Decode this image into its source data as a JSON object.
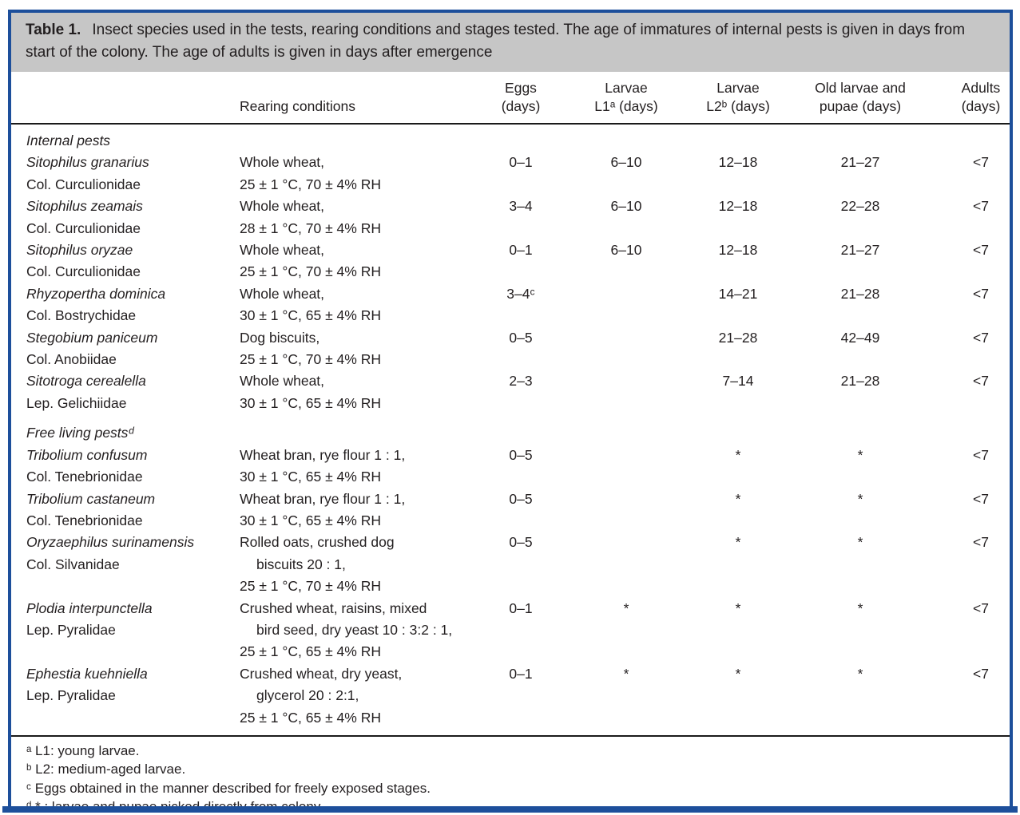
{
  "caption": {
    "label": "Table 1.",
    "text": "Insect species used in the tests, rearing conditions and stages tested. The age of immatures of internal pests is given in days from start of the colony. The age of adults is given in days after emergence"
  },
  "header": {
    "species": "",
    "rearing": "Rearing conditions",
    "cols": [
      {
        "line1": "Eggs",
        "line2": "(days)"
      },
      {
        "line1": "Larvae",
        "line2": "L1ᵃ (days)"
      },
      {
        "line1": "Larvae",
        "line2": "L2ᵇ (days)"
      },
      {
        "line1": "Old larvae and",
        "line2": "pupae (days)"
      },
      {
        "line1": "Adults",
        "line2": "(days)"
      }
    ]
  },
  "rows": [
    {
      "type": "section",
      "label": "Internal pests"
    },
    {
      "type": "species",
      "name": "Sitophilus granarius",
      "family": "Col. Curculionidae",
      "rearing": [
        {
          "t": "Whole wheat,",
          "ind": false
        },
        {
          "t": "25 ± 1 °C, 70 ± 4% RH",
          "ind": false
        }
      ],
      "values": [
        "0–1",
        "6–10",
        "12–18",
        "21–27",
        "<7"
      ]
    },
    {
      "type": "species",
      "name": "Sitophilus zeamais",
      "family": "Col. Curculionidae",
      "rearing": [
        {
          "t": "Whole wheat,",
          "ind": false
        },
        {
          "t": "28 ± 1 °C, 70 ± 4% RH",
          "ind": false
        }
      ],
      "values": [
        "3–4",
        "6–10",
        "12–18",
        "22–28",
        "<7"
      ]
    },
    {
      "type": "species",
      "name": "Sitophilus oryzae",
      "family": "Col. Curculionidae",
      "rearing": [
        {
          "t": "Whole wheat,",
          "ind": false
        },
        {
          "t": "25 ± 1 °C, 70 ± 4% RH",
          "ind": false
        }
      ],
      "values": [
        "0–1",
        "6–10",
        "12–18",
        "21–27",
        "<7"
      ]
    },
    {
      "type": "species",
      "name": "Rhyzopertha dominica",
      "family": "Col. Bostrychidae",
      "rearing": [
        {
          "t": "Whole wheat,",
          "ind": false
        },
        {
          "t": "30 ± 1 °C, 65 ± 4% RH",
          "ind": false
        }
      ],
      "values": [
        "3–4ᶜ",
        "",
        "14–21",
        "21–28",
        "<7"
      ]
    },
    {
      "type": "species",
      "name": "Stegobium paniceum",
      "family": "Col. Anobiidae",
      "rearing": [
        {
          "t": "Dog biscuits,",
          "ind": false
        },
        {
          "t": "25 ± 1 °C, 70 ± 4% RH",
          "ind": false
        }
      ],
      "values": [
        "0–5",
        "",
        "21–28",
        "42–49",
        "<7"
      ]
    },
    {
      "type": "species",
      "name": "Sitotroga cerealella",
      "family": "Lep. Gelichiidae",
      "rearing": [
        {
          "t": "Whole wheat,",
          "ind": false
        },
        {
          "t": "30 ± 1 °C, 65 ± 4% RH",
          "ind": false
        }
      ],
      "values": [
        "2–3",
        "",
        "7–14",
        "21–28",
        "<7"
      ]
    },
    {
      "type": "section",
      "label": "Free living pestsᵈ"
    },
    {
      "type": "species",
      "name": "Tribolium confusum",
      "family": "Col. Tenebrionidae",
      "rearing": [
        {
          "t": "Wheat bran, rye flour 1 : 1,",
          "ind": false
        },
        {
          "t": "30 ± 1 °C, 65 ± 4% RH",
          "ind": false
        }
      ],
      "values": [
        "0–5",
        "",
        "*",
        "*",
        "<7"
      ]
    },
    {
      "type": "species",
      "name": "Tribolium castaneum",
      "family": "Col. Tenebrionidae",
      "rearing": [
        {
          "t": "Wheat bran, rye flour 1 : 1,",
          "ind": false
        },
        {
          "t": "30 ± 1 °C, 65 ± 4% RH",
          "ind": false
        }
      ],
      "values": [
        "0–5",
        "",
        "*",
        "*",
        "<7"
      ]
    },
    {
      "type": "species",
      "name": "Oryzaephilus surinamensis",
      "family": "Col. Silvanidae",
      "rearing": [
        {
          "t": "Rolled oats, crushed dog",
          "ind": false
        },
        {
          "t": "biscuits 20 : 1,",
          "ind": true
        },
        {
          "t": "25 ± 1 °C, 70 ± 4% RH",
          "ind": false
        }
      ],
      "values": [
        "0–5",
        "",
        "*",
        "*",
        "<7"
      ]
    },
    {
      "type": "species",
      "name": "Plodia interpunctella",
      "family": "Lep. Pyralidae",
      "rearing": [
        {
          "t": "Crushed wheat, raisins, mixed",
          "ind": false
        },
        {
          "t": "bird seed, dry yeast 10 : 3:2 : 1,",
          "ind": true
        },
        {
          "t": "25 ± 1 °C, 65 ± 4% RH",
          "ind": false
        }
      ],
      "values": [
        "0–1",
        "*",
        "*",
        "*",
        "<7"
      ]
    },
    {
      "type": "species",
      "name": "Ephestia kuehniella",
      "family": "Lep. Pyralidae",
      "rearing": [
        {
          "t": "Crushed wheat, dry yeast,",
          "ind": false
        },
        {
          "t": "glycerol 20 : 2:1,",
          "ind": true
        },
        {
          "t": "25 ± 1 °C, 65 ± 4% RH",
          "ind": false
        }
      ],
      "values": [
        "0–1",
        "*",
        "*",
        "*",
        "<7"
      ]
    }
  ],
  "footnotes": [
    "ᵃ L1: young larvae.",
    "ᵇ L2: medium-aged larvae.",
    "ᶜ Eggs obtained in the manner described for freely exposed stages.",
    "ᵈ * : larvae and pupae picked directly from colony."
  ],
  "colors": {
    "border-blue": "#1d4f9b",
    "caption-gray": "#c6c6c6",
    "ink": "#231f20",
    "rule-black": "#1a1a1a"
  }
}
